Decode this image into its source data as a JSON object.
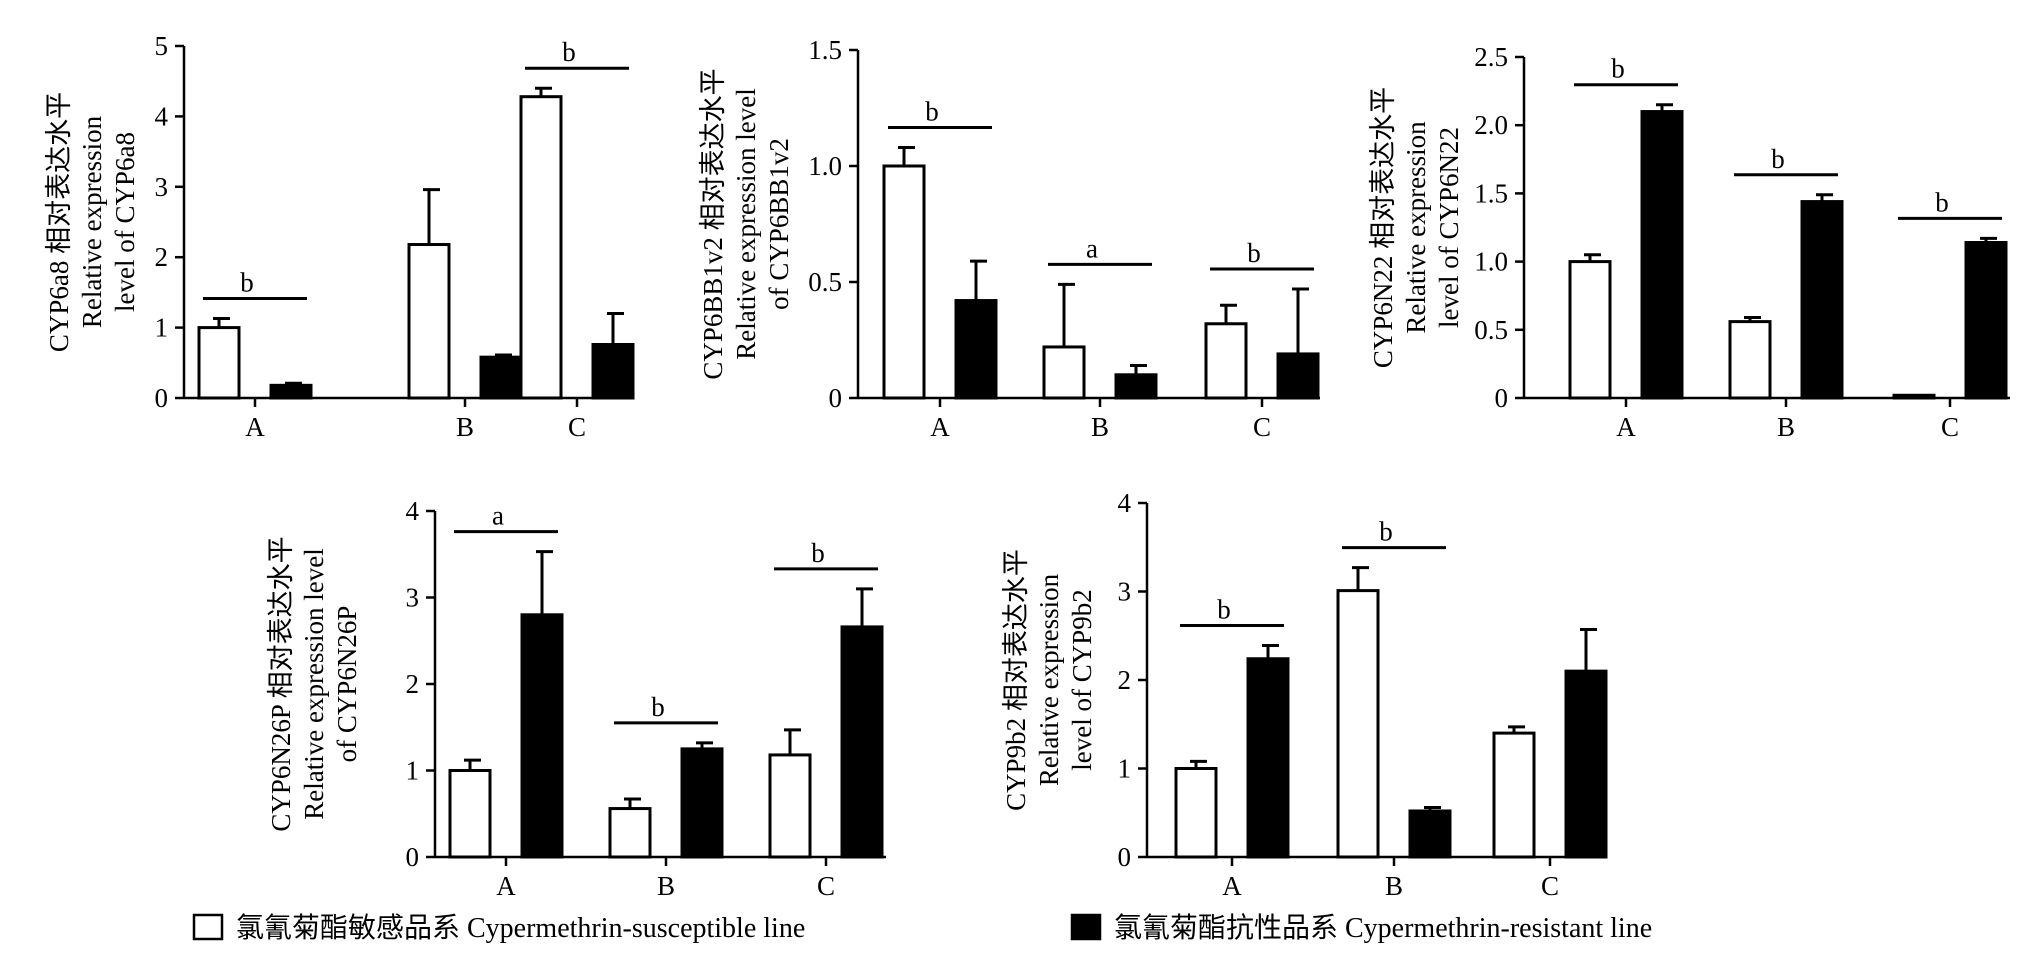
{
  "chart_data": [
    {
      "type": "bar",
      "ylabel": [
        "CYP6a8 相对表达水平",
        "Relative expression",
        "level of CYP6a8"
      ],
      "categories": [
        "A",
        "B",
        "C"
      ],
      "ylim": [
        0,
        5
      ],
      "yticks": [
        "0",
        "1",
        "2",
        "3",
        "4",
        "5"
      ],
      "series": [
        {
          "values": [
            1.0,
            2.18,
            4.28
          ],
          "errors": [
            0.13,
            0.78,
            0.12
          ]
        },
        {
          "values": [
            0.18,
            0.58,
            0.76
          ],
          "errors": [
            0.03,
            0.03,
            0.44
          ]
        }
      ],
      "annotations": [
        "b",
        "",
        "b"
      ]
    },
    {
      "type": "bar",
      "ylabel": [
        "CYP6BB1v2 相对表达水平",
        "Relative expression level",
        "of CYP6BB1v2"
      ],
      "categories": [
        "A",
        "B",
        "C"
      ],
      "ylim": [
        0,
        1.5
      ],
      "yticks": [
        "0",
        "0.5",
        "1.0",
        "1.5"
      ],
      "series": [
        {
          "values": [
            1.0,
            0.22,
            0.32
          ],
          "errors": [
            0.08,
            0.27,
            0.08
          ]
        },
        {
          "values": [
            0.42,
            0.1,
            0.19
          ],
          "errors": [
            0.17,
            0.04,
            0.28
          ]
        }
      ],
      "annotations": [
        "b",
        "a",
        "b"
      ]
    },
    {
      "type": "bar",
      "ylabel": [
        "CYP6N22 相对表达水平",
        "Relative expression",
        "level of CYP6N22"
      ],
      "categories": [
        "A",
        "B",
        "C"
      ],
      "ylim": [
        0,
        2.5
      ],
      "yticks": [
        "0",
        "0.5",
        "1.0",
        "1.5",
        "2.0",
        "2.5"
      ],
      "series": [
        {
          "values": [
            1.0,
            0.56,
            0.02
          ],
          "errors": [
            0.05,
            0.03,
            0.0
          ]
        },
        {
          "values": [
            2.1,
            1.44,
            1.14
          ],
          "errors": [
            0.05,
            0.05,
            0.03
          ]
        }
      ],
      "annotations": [
        "b",
        "b",
        "b"
      ]
    },
    {
      "type": "bar",
      "ylabel": [
        "CYP6N26P 相对表达水平",
        "Relative expression level",
        "of CYP6N26P"
      ],
      "categories": [
        "A",
        "B",
        "C"
      ],
      "ylim": [
        0,
        4
      ],
      "yticks": [
        "0",
        "1",
        "2",
        "3",
        "4"
      ],
      "series": [
        {
          "values": [
            1.0,
            0.56,
            1.18
          ],
          "errors": [
            0.12,
            0.11,
            0.29
          ]
        },
        {
          "values": [
            2.8,
            1.25,
            2.66
          ],
          "errors": [
            0.73,
            0.07,
            0.44
          ]
        }
      ],
      "annotations": [
        "a",
        "b",
        "b"
      ]
    },
    {
      "type": "bar",
      "ylabel": [
        "CYP9b2 相对表达水平",
        "Relative expression",
        "level of CYP9b2"
      ],
      "categories": [
        "A",
        "B",
        "C"
      ],
      "ylim": [
        0,
        4
      ],
      "yticks": [
        "0",
        "1",
        "2",
        "3",
        "4"
      ],
      "series": [
        {
          "values": [
            1.0,
            3.01,
            1.4
          ],
          "errors": [
            0.08,
            0.26,
            0.07
          ]
        },
        {
          "values": [
            2.24,
            0.52,
            2.1
          ],
          "errors": [
            0.15,
            0.04,
            0.47
          ]
        }
      ],
      "annotations": [
        "b",
        "b",
        ""
      ]
    }
  ],
  "legend": {
    "susceptible": "氯氰菊酯敏感品系 Cypermethrin-susceptible line",
    "resistant": "氯氰菊酯抗性品系 Cypermethrin-resistant line"
  },
  "colors": {
    "susceptible_fill": "#ffffff",
    "resistant_fill": "#000000",
    "stroke": "#000000"
  }
}
